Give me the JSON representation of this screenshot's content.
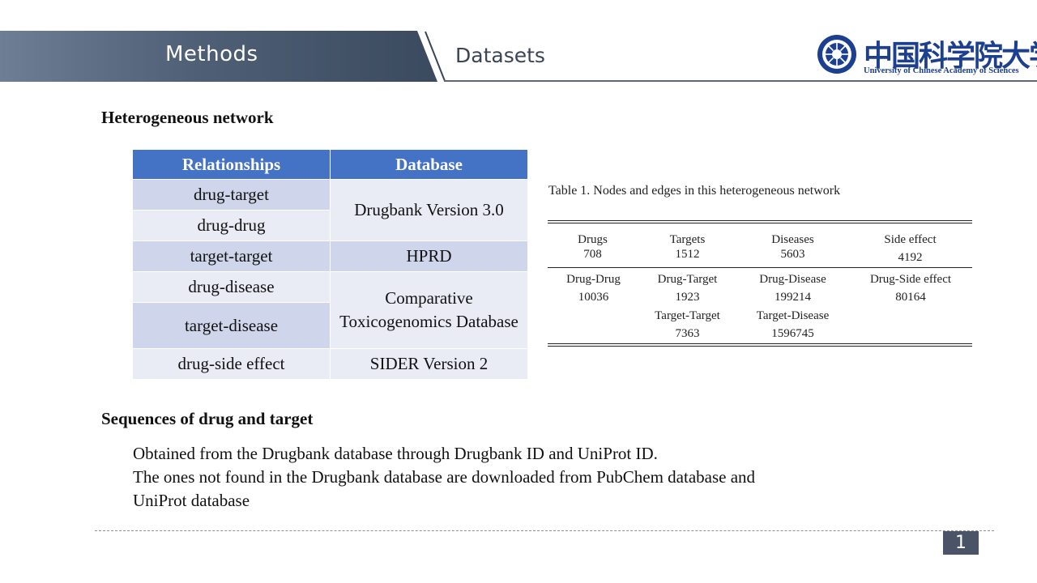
{
  "header": {
    "banner_title": "Methods",
    "section_title": "Datasets",
    "logo_cn": "中国科学院大学",
    "logo_en": "University of Chinese Academy of Sciences"
  },
  "heading_network": "Heterogeneous network",
  "relationships_table": {
    "headers": [
      "Relationships",
      "Database"
    ],
    "relationships": [
      "drug-target",
      "drug-drug",
      "target-target",
      "drug-disease",
      "target-disease",
      "drug-side effect"
    ],
    "databases": [
      "Drugbank Version 3.0",
      "HPRD",
      "Comparative Toxicogenomics Database",
      "SIDER Version 2"
    ]
  },
  "table1": {
    "caption": "Table 1. Nodes and edges in this heterogeneous network",
    "nodes": [
      {
        "label": "Drugs",
        "value": "708"
      },
      {
        "label": "Targets",
        "value": "1512"
      },
      {
        "label": "Diseases",
        "value": "5603"
      },
      {
        "label": "Side effect",
        "value": "4192"
      }
    ],
    "edges": [
      {
        "label": "Drug-Drug",
        "value": "10036"
      },
      {
        "label": "Drug-Target",
        "value": "1923"
      },
      {
        "label": "Drug-Disease",
        "value": "199214"
      },
      {
        "label": "Drug-Side effect",
        "value": "80164"
      },
      {
        "label": "Target-Target",
        "value": "7363"
      },
      {
        "label": "Target-Disease",
        "value": "1596745"
      }
    ]
  },
  "heading_sequences": "Sequences of drug and target",
  "body_lines": [
    "Obtained from the Drugbank database through Drugbank ID and UniProt ID.",
    "The ones not found in the Drugbank database are downloaded from PubChem database and",
    "UniProt database"
  ],
  "page_number": "1",
  "colors": {
    "table_header": "#4472c4",
    "row_dark": "#cfd5ea",
    "row_light": "#e9ebf5",
    "logo_blue": "#1c3f8f",
    "page_box": "#4b5466"
  }
}
